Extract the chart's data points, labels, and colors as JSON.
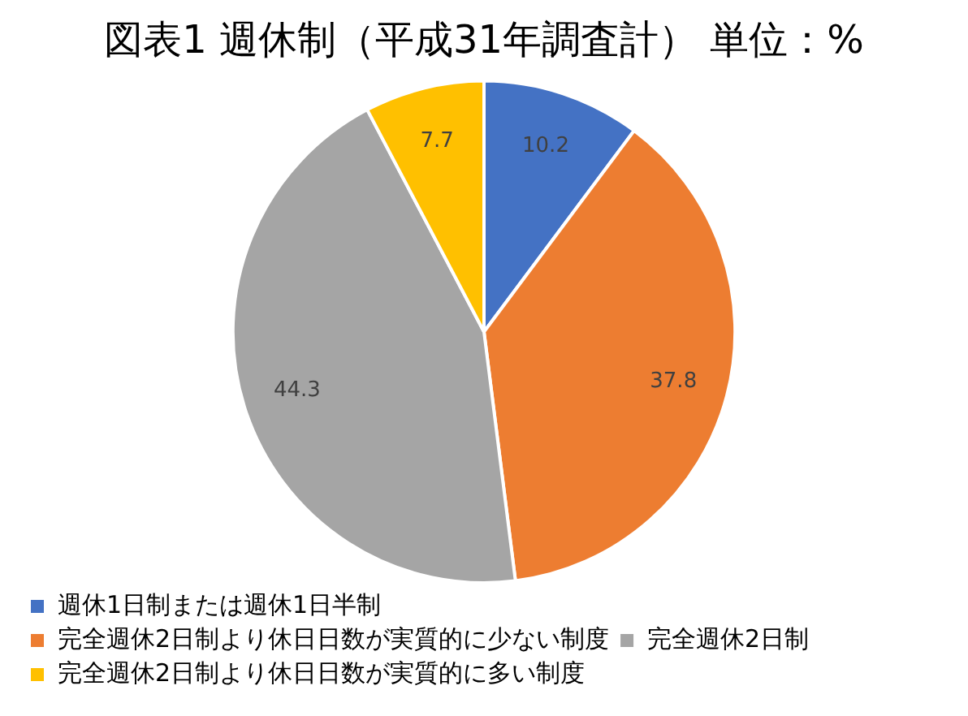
{
  "chart_data": {
    "type": "pie",
    "title": "図表1 週休制（平成31年調査計） 単位：%",
    "categories": [
      "週休1日制または週休1日半制",
      "完全週休2日制より休日日数が実質的に少ない制度",
      "完全週休2日制",
      "完全週休2日制より休日日数が実質的に多い制度"
    ],
    "values": [
      10.2,
      37.8,
      44.3,
      7.7
    ],
    "colors": [
      "#4472c4",
      "#ed7d31",
      "#a5a5a5",
      "#ffc000"
    ],
    "data_labels": true,
    "legend": "bottom"
  }
}
